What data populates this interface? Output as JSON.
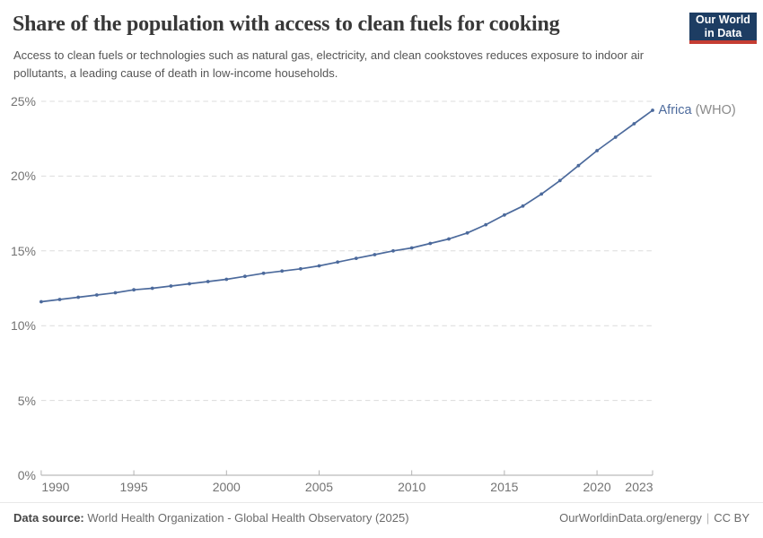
{
  "header": {
    "title": "Share of the population with access to clean fuels for cooking",
    "subtitle": "Access to clean fuels or technologies such as natural gas, electricity, and clean cookstoves reduces exposure to indoor air pollutants, a leading cause of death in low-income households.",
    "logo": {
      "line1": "Our World",
      "line2": "in Data",
      "bg_color": "#1d3d63",
      "accent_color": "#c53d33"
    }
  },
  "chart_data": {
    "type": "line",
    "title": "Share of the population with access to clean fuels for cooking",
    "xlabel": "",
    "ylabel": "",
    "x": [
      1990,
      1991,
      1992,
      1993,
      1994,
      1995,
      1996,
      1997,
      1998,
      1999,
      2000,
      2001,
      2002,
      2003,
      2004,
      2005,
      2006,
      2007,
      2008,
      2009,
      2010,
      2011,
      2012,
      2013,
      2014,
      2015,
      2016,
      2017,
      2018,
      2019,
      2020,
      2021,
      2022,
      2023
    ],
    "series": [
      {
        "name": "Africa (WHO)",
        "entity": "Africa",
        "annotation": "(WHO)",
        "color": "#4c6a9c",
        "values": [
          11.6,
          11.75,
          11.9,
          12.05,
          12.2,
          12.4,
          12.5,
          12.65,
          12.8,
          12.95,
          13.1,
          13.3,
          13.5,
          13.65,
          13.8,
          14.0,
          14.25,
          14.5,
          14.75,
          15.0,
          15.2,
          15.5,
          15.8,
          16.2,
          16.75,
          17.4,
          18.0,
          18.8,
          19.7,
          20.7,
          21.7,
          22.6,
          23.5,
          24.4
        ]
      }
    ],
    "xlim": [
      1990,
      2023
    ],
    "ylim": [
      0,
      25
    ],
    "xticks": [
      1990,
      1995,
      2000,
      2005,
      2010,
      2015,
      2020,
      2023
    ],
    "yticks": [
      0,
      5,
      10,
      15,
      20,
      25
    ],
    "ytick_labels": [
      "0%",
      "5%",
      "10%",
      "15%",
      "20%",
      "25%"
    ],
    "grid": "horizontal-dashed",
    "legend_position": "end-of-line",
    "grid_color": "#dcdcdc",
    "axis_color": "#a8a8a8"
  },
  "footer": {
    "datasource_label": "Data source:",
    "datasource_text": "World Health Organization - Global Health Observatory (2025)",
    "link_text": "OurWorldinData.org/energy",
    "separator": "|",
    "license_text": "CC BY"
  }
}
